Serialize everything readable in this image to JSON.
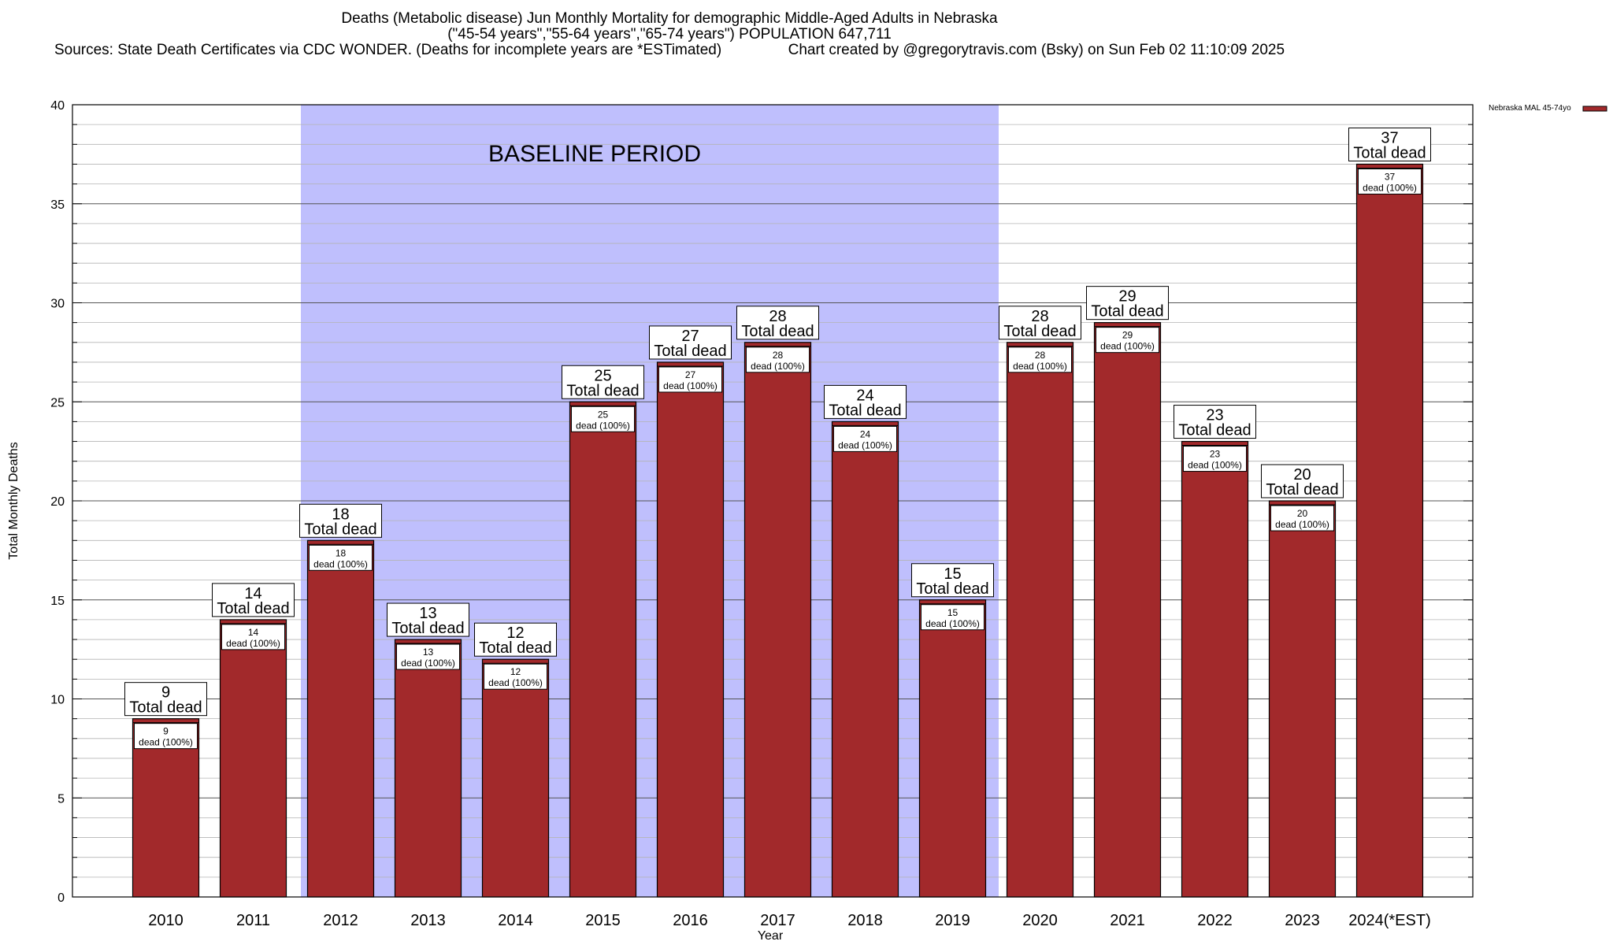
{
  "header": {
    "line1": "Deaths (Metabolic disease) Jun Monthly Mortality for demographic Middle-Aged Adults in Nebraska",
    "line2": "(\"45-54 years\",\"55-64 years\",\"65-74 years\") POPULATION 647,711",
    "line3": "Sources: State Death Certificates via CDC WONDER. (Deaths for incomplete years are *ESTimated)                Chart created by @gregorytravis.com (Bsky) on Sun Feb 02 11:10:09 2025"
  },
  "chart_data": {
    "type": "bar",
    "title": "Deaths (Metabolic disease) Jun Monthly Mortality for demographic Middle-Aged Adults in Nebraska",
    "xlabel": "Year",
    "ylabel": "Total Monthly Deaths",
    "ylim": [
      0,
      40
    ],
    "yticks": [
      0,
      5,
      10,
      15,
      20,
      25,
      30,
      35,
      40
    ],
    "grid": true,
    "legend_position": "top-right",
    "categories": [
      "2010",
      "2011",
      "2012",
      "2013",
      "2014",
      "2015",
      "2016",
      "2017",
      "2018",
      "2019",
      "2020",
      "2021",
      "2022",
      "2023",
      "2024(*EST)"
    ],
    "series": [
      {
        "name": "Nebraska MAL 45-74yo",
        "color": "#a2292b",
        "values": [
          9,
          14,
          18,
          13,
          12,
          25,
          27,
          28,
          24,
          15,
          28,
          29,
          23,
          20,
          37
        ]
      }
    ],
    "total_label_text": "Total dead",
    "inner_label_suffix": "dead (100%)",
    "baseline": {
      "label": "BASELINE PERIOD",
      "from": "2012",
      "to": "2019",
      "color": "#bfbffd"
    }
  }
}
